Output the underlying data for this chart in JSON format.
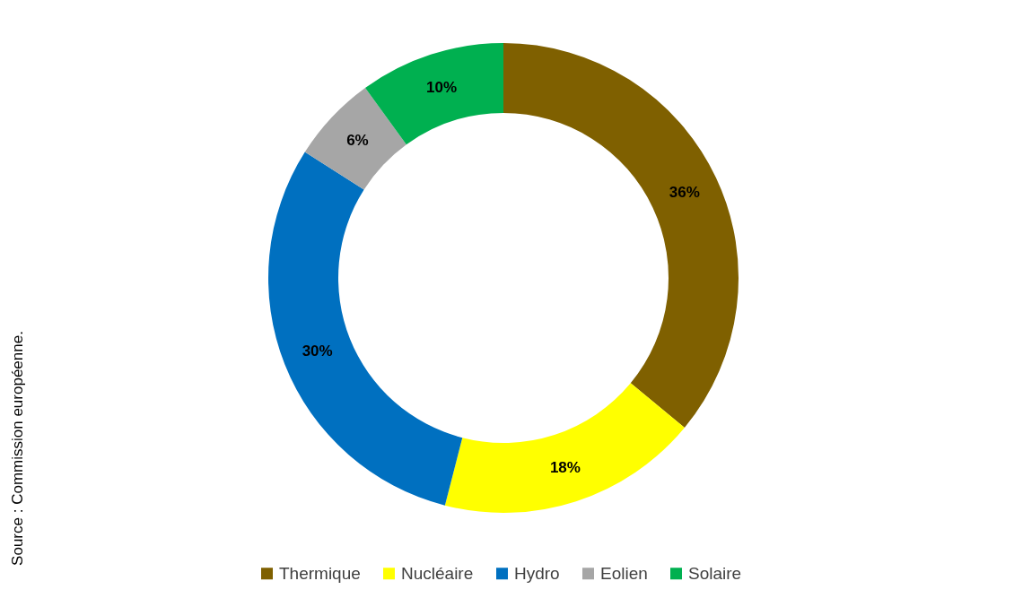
{
  "chart_data": {
    "type": "donut",
    "categories": [
      "Thermique",
      "Nucléaire",
      "Hydro",
      "Eolien",
      "Solaire"
    ],
    "values": [
      36,
      18,
      30,
      6,
      10
    ],
    "colors": [
      "#7f6000",
      "#ffff00",
      "#0070c0",
      "#a6a6a6",
      "#00b050"
    ],
    "value_labels": [
      "36%",
      "18%",
      "30%",
      "6%",
      "10%"
    ],
    "legend": "bottom",
    "annotations": [
      "Source : Commission européenne."
    ]
  }
}
